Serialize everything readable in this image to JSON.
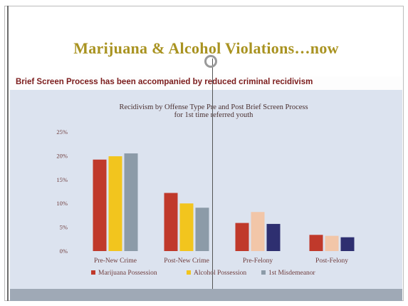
{
  "slide": {
    "title": "Marijuana & Alcohol Violations…now",
    "subtitle": "Brief Screen Process has been accompanied by reduced criminal recidivism"
  },
  "chart_data": {
    "type": "bar",
    "title_lines": [
      "Recidivism by Offense Type Pre and Post Brief Screen Process",
      "for 1st time referred youth"
    ],
    "categories": [
      "Pre-New Crime",
      "Post-New Crime",
      "Pre-Felony",
      "Post-Felony"
    ],
    "series": [
      {
        "name": "Marijuana Possession",
        "color": "#c0392b",
        "values": [
          19.2,
          12.2,
          5.9,
          3.4
        ]
      },
      {
        "name": "Alcohol Possession",
        "colors": [
          "#f2c51e",
          "#f2c51e",
          "#f2c6a8",
          "#f2c6a8"
        ],
        "legend_color": "#f2c51e",
        "values": [
          19.9,
          10.0,
          8.2,
          3.2
        ]
      },
      {
        "name": "1st Misdemeanor",
        "colors": [
          "#8c9ba8",
          "#8c9ba8",
          "#2e2f70",
          "#2e2f70"
        ],
        "legend_color": "#8c9ba8",
        "values": [
          20.5,
          9.1,
          5.7,
          2.9
        ]
      }
    ],
    "yticks": [
      "0%",
      "5%",
      "10%",
      "15%",
      "20%",
      "25%"
    ],
    "ylim": [
      0,
      25
    ],
    "legend_position": "bottom",
    "grid": false
  }
}
